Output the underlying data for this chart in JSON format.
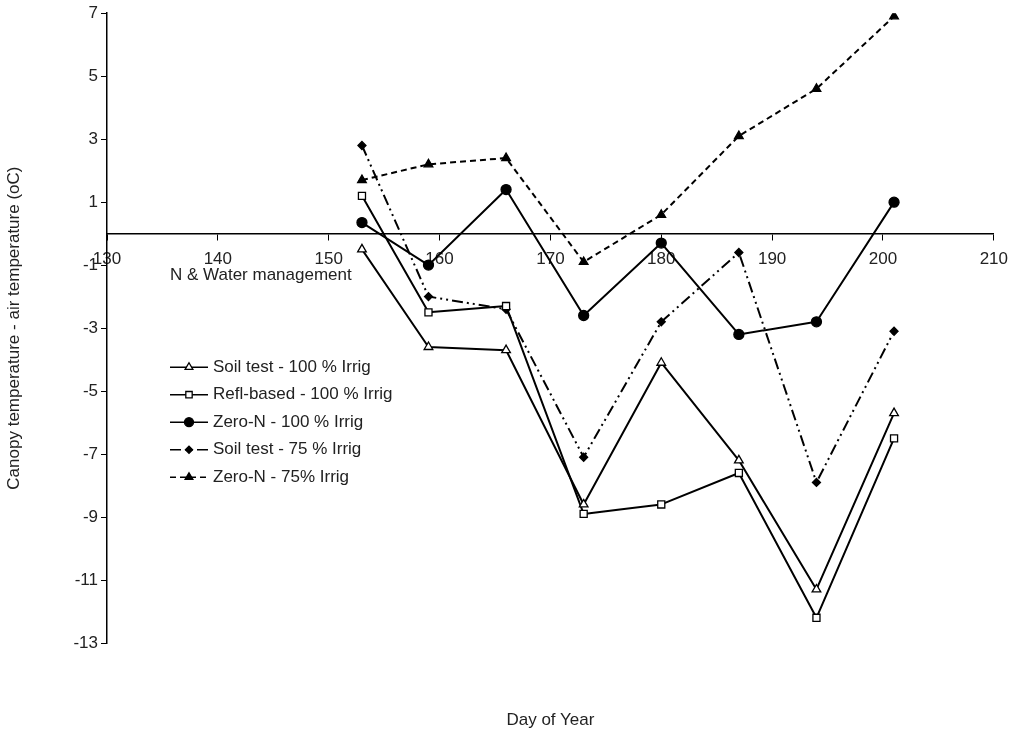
{
  "chart_data": {
    "type": "line",
    "xlabel": "Day of Year",
    "ylabel": "Canopy temperature - air temperature (oC)",
    "legend_title": "N & Water management",
    "x": [
      153,
      159,
      166,
      173,
      180,
      187,
      194,
      201
    ],
    "series": [
      {
        "name": "Soil test - 100 % Irrig",
        "color": "#000000",
        "marker": "triangle",
        "line_style": "solid",
        "values": [
          -0.5,
          -3.6,
          -3.7,
          -8.6,
          -4.1,
          -7.2,
          -11.3,
          -5.7
        ]
      },
      {
        "name": "Refl-based - 100 % Irrig",
        "color": "#000000",
        "marker": "square",
        "line_style": "solid",
        "values": [
          1.2,
          -2.5,
          -2.3,
          -8.9,
          -8.6,
          -7.6,
          -12.2,
          -6.5
        ]
      },
      {
        "name": "Zero-N - 100 % Irrig",
        "color": "#000000",
        "marker": "circle",
        "line_style": "solid",
        "values": [
          0.35,
          -1.0,
          1.4,
          -2.6,
          -0.3,
          -3.2,
          -2.8,
          1.0
        ]
      },
      {
        "name": "Soil test - 75 % Irrig",
        "color": "#000000",
        "marker": "diamond",
        "line_style": "dashdotdot",
        "values": [
          2.8,
          -2.0,
          -2.4,
          -7.1,
          -2.8,
          -0.6,
          -7.9,
          -3.1
        ]
      },
      {
        "name": "Zero-N - 75% Irrig",
        "color": "#000000",
        "marker": "triangle",
        "line_style": "dashed",
        "values": [
          1.7,
          2.2,
          2.4,
          -0.9,
          0.6,
          3.1,
          4.6,
          6.9
        ]
      }
    ],
    "xlim": [
      130,
      210
    ],
    "xticks": [
      130,
      140,
      150,
      160,
      170,
      180,
      190,
      200,
      210
    ],
    "ylim": [
      -13,
      7
    ],
    "yticks": [
      -13,
      -11,
      -9,
      -7,
      -5,
      -3,
      -1,
      1,
      3,
      5,
      7
    ],
    "grid": false,
    "legend": "left"
  }
}
